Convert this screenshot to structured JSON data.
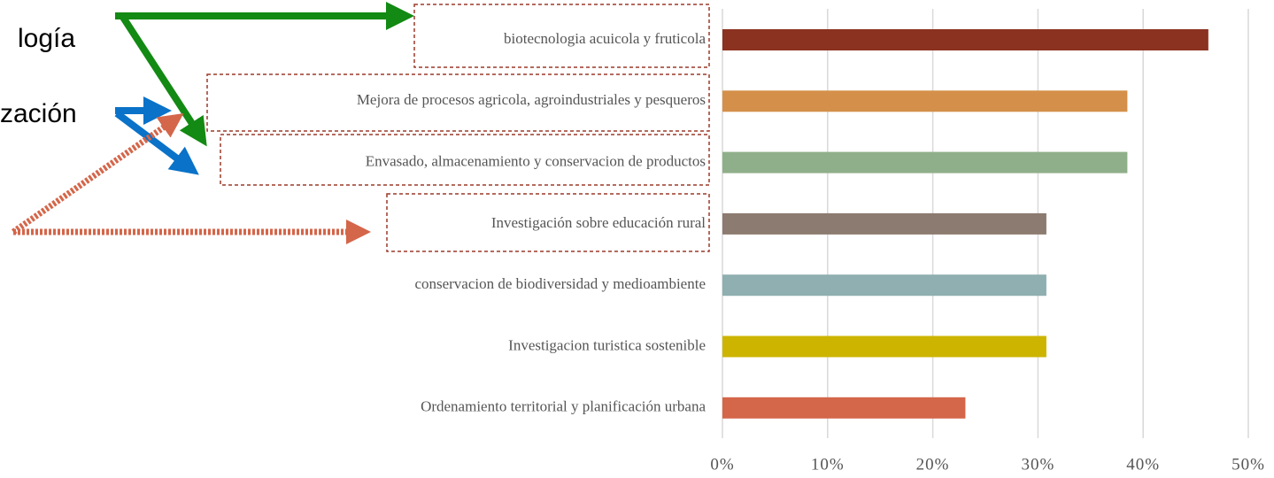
{
  "chart_data": {
    "type": "hbar",
    "categories": [
      "biotecnologia acuicola y fruticola",
      "Mejora de procesos agricola, agroindustriales y pesqueros",
      "Envasado, almacenamiento y conservacion de productos",
      "Investigación sobre educación rural",
      "conservacion de biodiversidad y medioambiente",
      "Investigacion turistica sostenible",
      "Ordenamiento territorial y planificación urbana"
    ],
    "values": [
      46.2,
      38.5,
      38.5,
      30.8,
      30.8,
      30.8,
      23.1
    ],
    "colors": [
      "#8b3220",
      "#d4904a",
      "#8faf8a",
      "#8c7b70",
      "#8fafb0",
      "#cdb400",
      "#d4664a"
    ],
    "xlim": [
      0,
      50
    ],
    "xticks": [
      {
        "value": 0,
        "label": "0%"
      },
      {
        "value": 10,
        "label": "10%"
      },
      {
        "value": 20,
        "label": "20%"
      },
      {
        "value": 30,
        "label": "30%"
      },
      {
        "value": 40,
        "label": "40%"
      },
      {
        "value": 50,
        "label": "50%"
      }
    ],
    "grid": true,
    "annotations": [
      "logía",
      "zación"
    ]
  }
}
